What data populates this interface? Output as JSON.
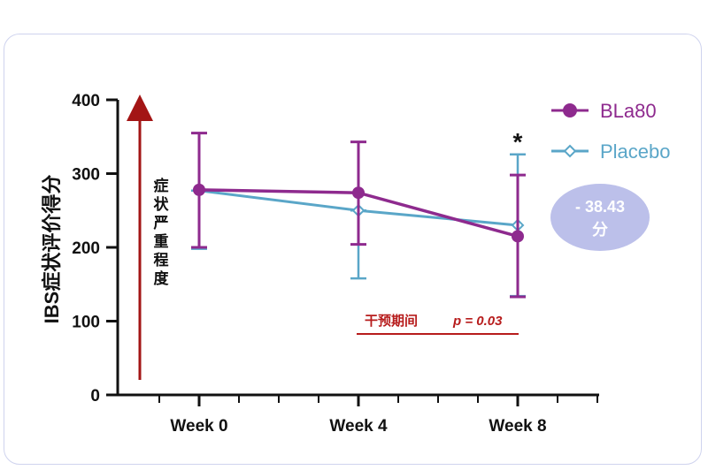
{
  "chart_data": {
    "type": "line",
    "title": "",
    "ylabel": "IBS症状评价得分",
    "xlabel": "",
    "categories": [
      "Week 0",
      "Week 4",
      "Week 8"
    ],
    "ylim": [
      0,
      400
    ],
    "yticks": [
      "0",
      "100",
      "200",
      "300",
      "400"
    ],
    "series": [
      {
        "name": "BLa80",
        "color": "#8e2a8e",
        "values": [
          278,
          274,
          215
        ],
        "err_high": [
          355,
          343,
          298
        ],
        "err_low": [
          200,
          204,
          133
        ]
      },
      {
        "name": "Placebo",
        "color": "#5aa6c8",
        "values": [
          277,
          250,
          230
        ],
        "err_high": [
          277,
          250,
          326
        ],
        "err_low": [
          198,
          158,
          134
        ]
      }
    ],
    "annotations": {
      "severity_arrow_label": "症状严重程度",
      "significance_mark": "*",
      "intervention_label": "干预期间",
      "p_value": "p = 0.03",
      "difference_value": "- 38.43",
      "difference_unit": "分"
    },
    "legend_position": "top-right",
    "colors": {
      "arrow": "#a31515",
      "annotation": "#b71c1c",
      "badge_fill": "#bcc0ea"
    }
  }
}
